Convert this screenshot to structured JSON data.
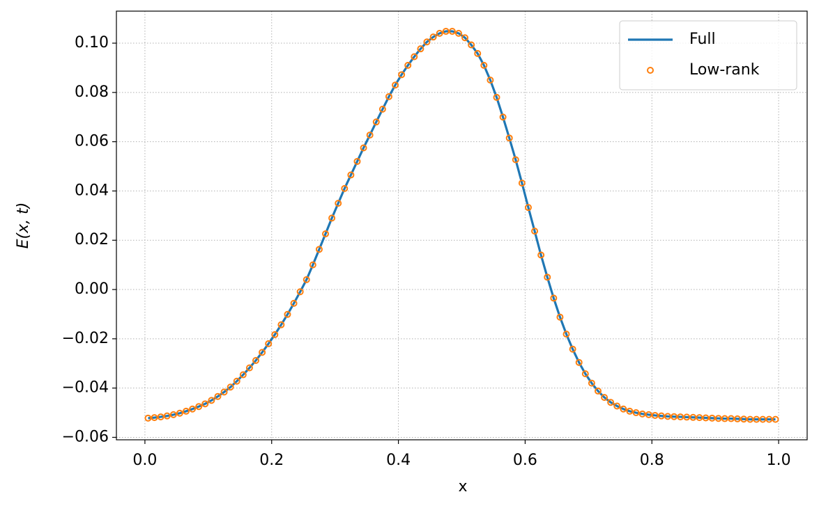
{
  "chart_data": {
    "type": "line",
    "xlabel": "x",
    "ylabel": "E(x, t)",
    "xlim": [
      -0.045,
      1.045
    ],
    "ylim": [
      -0.061,
      0.113
    ],
    "xticks": [
      {
        "value": 0,
        "label": "0.0"
      },
      0.2,
      0.4,
      0.6,
      0.8,
      {
        "value": 1,
        "label": "1.0"
      }
    ],
    "yticks": [
      {
        "value": -0.06,
        "label": "−0.06"
      },
      {
        "value": -0.04,
        "label": "−0.04"
      },
      {
        "value": -0.02,
        "label": "−0.02"
      },
      {
        "value": 0,
        "label": "0.00"
      },
      0.02,
      0.04,
      0.06,
      0.08,
      {
        "value": 0.1,
        "label": "0.10"
      }
    ],
    "grid": true,
    "legend": "upper right",
    "x": [
      0.005,
      0.015,
      0.025,
      0.035,
      0.045,
      0.055,
      0.065,
      0.075,
      0.085,
      0.095,
      0.105,
      0.115,
      0.125,
      0.135,
      0.145,
      0.155,
      0.165,
      0.175,
      0.185,
      0.195,
      0.205,
      0.215,
      0.225,
      0.235,
      0.245,
      0.255,
      0.265,
      0.275,
      0.285,
      0.295,
      0.305,
      0.315,
      0.325,
      0.335,
      0.345,
      0.355,
      0.365,
      0.375,
      0.385,
      0.395,
      0.405,
      0.415,
      0.425,
      0.435,
      0.445,
      0.455,
      0.465,
      0.475,
      0.485,
      0.495,
      0.505,
      0.515,
      0.525,
      0.535,
      0.545,
      0.555,
      0.565,
      0.575,
      0.585,
      0.595,
      0.605,
      0.615,
      0.625,
      0.635,
      0.645,
      0.655,
      0.665,
      0.675,
      0.685,
      0.695,
      0.705,
      0.715,
      0.725,
      0.735,
      0.745,
      0.755,
      0.765,
      0.775,
      0.785,
      0.795,
      0.805,
      0.815,
      0.825,
      0.835,
      0.845,
      0.855,
      0.865,
      0.875,
      0.885,
      0.895,
      0.905,
      0.915,
      0.925,
      0.935,
      0.945,
      0.955,
      0.965,
      0.975,
      0.985,
      0.995
    ],
    "series": [
      {
        "name": "Full",
        "color": "#1f77b4",
        "style": "line",
        "values": [
          -0.0522,
          -0.052,
          -0.0517,
          -0.0513,
          -0.0508,
          -0.0502,
          -0.0494,
          -0.0485,
          -0.0475,
          -0.0464,
          -0.045,
          -0.0434,
          -0.0416,
          -0.0396,
          -0.0372,
          -0.0346,
          -0.0318,
          -0.0288,
          -0.0255,
          -0.022,
          -0.0183,
          -0.0143,
          -0.0101,
          -0.0056,
          -0.0009,
          0.004,
          0.01,
          0.0163,
          0.0226,
          0.029,
          0.035,
          0.041,
          0.0465,
          0.052,
          0.0575,
          0.0627,
          0.068,
          0.0732,
          0.0783,
          0.083,
          0.0872,
          0.091,
          0.0945,
          0.0977,
          0.1005,
          0.1025,
          0.104,
          0.1048,
          0.1048,
          0.104,
          0.1022,
          0.0993,
          0.0958,
          0.091,
          0.085,
          0.078,
          0.07,
          0.0615,
          0.0527,
          0.0432,
          0.0333,
          0.0237,
          0.014,
          0.005,
          -0.0035,
          -0.0112,
          -0.0181,
          -0.0242,
          -0.0296,
          -0.0342,
          -0.038,
          -0.0412,
          -0.0438,
          -0.0458,
          -0.0473,
          -0.0485,
          -0.0494,
          -0.05,
          -0.0505,
          -0.0508,
          -0.0511,
          -0.0513,
          -0.0515,
          -0.0516,
          -0.0517,
          -0.0518,
          -0.0519,
          -0.052,
          -0.0521,
          -0.0522,
          -0.0523,
          -0.0524,
          -0.0524,
          -0.0525,
          -0.0526,
          -0.0527,
          -0.0527,
          -0.0527,
          -0.0527,
          -0.0527
        ]
      },
      {
        "name": "Low-rank",
        "color": "#ff7f0e",
        "style": "marker",
        "values": [
          -0.0522,
          -0.052,
          -0.0517,
          -0.0513,
          -0.0508,
          -0.0502,
          -0.0494,
          -0.0485,
          -0.0475,
          -0.0464,
          -0.045,
          -0.0434,
          -0.0416,
          -0.0396,
          -0.0372,
          -0.0346,
          -0.0318,
          -0.0288,
          -0.0255,
          -0.022,
          -0.0183,
          -0.0143,
          -0.0101,
          -0.0056,
          -0.0009,
          0.004,
          0.01,
          0.0163,
          0.0226,
          0.029,
          0.035,
          0.041,
          0.0465,
          0.052,
          0.0575,
          0.0627,
          0.068,
          0.0732,
          0.0783,
          0.083,
          0.0872,
          0.091,
          0.0945,
          0.0977,
          0.1005,
          0.1025,
          0.104,
          0.1048,
          0.1048,
          0.104,
          0.1022,
          0.0993,
          0.0958,
          0.091,
          0.085,
          0.078,
          0.07,
          0.0615,
          0.0527,
          0.0432,
          0.0333,
          0.0237,
          0.014,
          0.005,
          -0.0035,
          -0.0112,
          -0.0181,
          -0.0242,
          -0.0296,
          -0.0342,
          -0.038,
          -0.0412,
          -0.0438,
          -0.0458,
          -0.0473,
          -0.0485,
          -0.0494,
          -0.05,
          -0.0505,
          -0.0508,
          -0.0511,
          -0.0513,
          -0.0515,
          -0.0516,
          -0.0517,
          -0.0518,
          -0.0519,
          -0.052,
          -0.0521,
          -0.0522,
          -0.0523,
          -0.0524,
          -0.0524,
          -0.0525,
          -0.0526,
          -0.0527,
          -0.0527,
          -0.0527,
          -0.0527,
          -0.0527
        ]
      }
    ]
  }
}
